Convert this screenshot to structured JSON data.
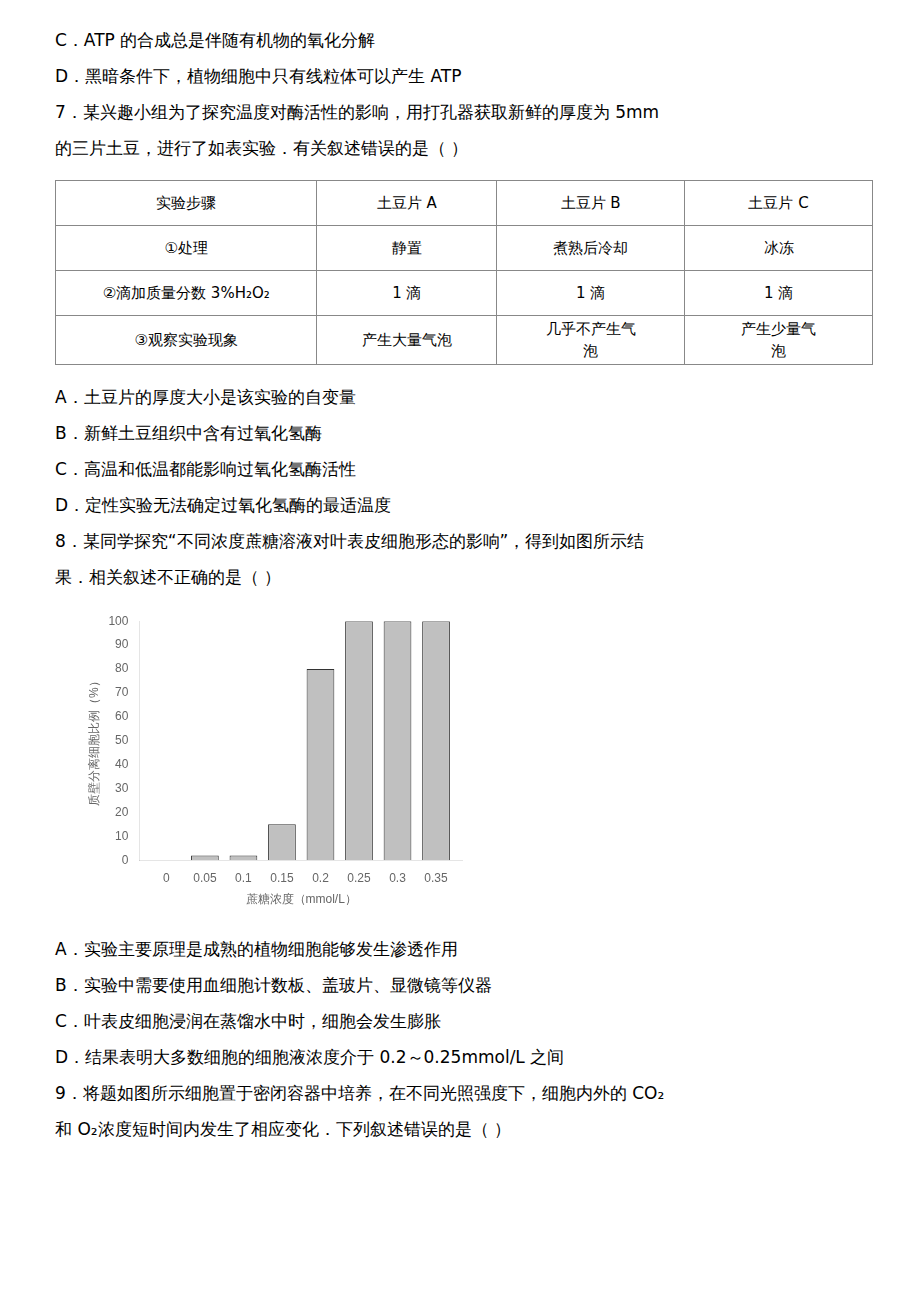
{
  "chart_data": {
    "type": "bar",
    "annotations": [
      [
        "C．ATP 的合成总是伴随有机物的氧化分解",
        "D．黑暗条件下，植物细胞中只有线粒体可以产生 ATP",
        "7．某兴趣小组为了探究温度对酶活性的影响，用打孔器获取新鲜的厚度为 5mm",
        "的三片土豆，进行了如表实验．有关叙述错误的是（     ）"
      ],
      [
        "A．土豆片的厚度大小是该实验的自变量",
        "B．新鲜土豆组织中含有过氧化氢酶",
        "C．高温和低温都能影响过氧化氢酶活性",
        "D．定性实验无法确定过氧化氢酶的最适温度",
        "8．某同学探究“不同浓度蔗糖溶液对叶表皮细胞形态的影响”，得到如图所示结",
        "果．相关叙述不正确的是（     ）"
      ],
      [
        "A．实验主要原理是成熟的植物细胞能够发生渗透作用",
        "B．实验中需要使用血细胞计数板、盖玻片、显微镜等仪器",
        "C．叶表皮细胞浸润在蒸馏水中时，细胞会发生膨胀",
        "D．结果表明大多数细胞的细胞液浓度介于 0.2～0.25mmol/L 之间",
        "9．将题如图所示细胞置于密闭容器中培养，在不同光照强度下，细胞内外的 CO₂",
        "和 O₂浓度短时间内发生了相应变化．下列叙述错误的是（     ）"
      ]
    ],
    "table": [
      [
        "实验步骤",
        "土豆片 A",
        "土豆片 B",
        "土豆片 C"
      ],
      [
        "①处理",
        "静置",
        "煮熟后冷却",
        "冰冻"
      ],
      [
        "②滴加质量分数 3%H₂O₂",
        "1 滴",
        "1 滴",
        "1 滴"
      ],
      [
        "③观察实验现象",
        "产生大量气泡",
        [
          "几乎不产生气",
          "泡"
        ],
        [
          "产生少量气",
          "泡"
        ]
      ]
    ],
    "x": [
      0,
      0.05,
      0.1,
      0.15,
      0.2,
      0.25,
      0.3,
      0.35
    ],
    "values": [
      0,
      2,
      2,
      15,
      80,
      100,
      100,
      100
    ],
    "color": "#c0c0c0",
    "x_label": "蔗糖浓度（mmol/L）",
    "y_label": "质壁分离细胞比例（%）",
    "xlim": [
      -0.035,
      0.385
    ],
    "xticks": [
      0,
      0.05,
      0.1,
      0.15,
      0.2,
      0.25,
      0.3,
      0.35
    ],
    "ylim": [
      0,
      100
    ],
    "yticks": [
      0,
      10,
      20,
      30,
      40,
      50,
      60,
      70,
      80,
      90,
      100
    ],
    "grid": false
  }
}
